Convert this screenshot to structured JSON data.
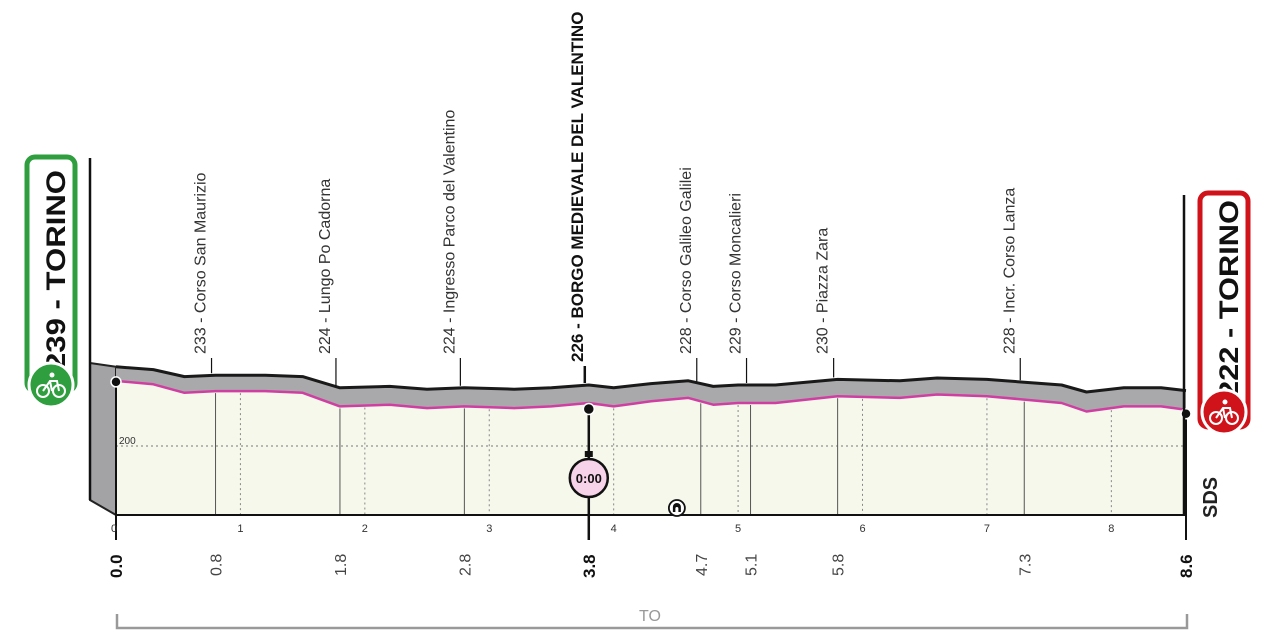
{
  "start": {
    "label": "239 - TORINO",
    "color": "#2e9e3e"
  },
  "finish": {
    "label": "222 - TORINO",
    "color": "#d0121b"
  },
  "brand": "SDS",
  "province": "TO",
  "intermediate": {
    "time": "0:00"
  },
  "colors": {
    "road": "#cf3fa2",
    "profile_fill": "#a9a9ab",
    "ground": "#f6f8ec"
  },
  "icons": {
    "start": "cyclist-icon",
    "finish": "cyclist-icon",
    "tunnel": "tunnel-icon",
    "timing": "stopwatch-icon"
  },
  "chart_data": {
    "type": "area",
    "total_km": 8.6,
    "elevation_reference": {
      "value": 200,
      "label": "200"
    },
    "km_ticks": [
      {
        "km": 0,
        "label": "0"
      },
      {
        "km": 1,
        "label": "1"
      },
      {
        "km": 2,
        "label": "2"
      },
      {
        "km": 3,
        "label": "3"
      },
      {
        "km": 4,
        "label": "4"
      },
      {
        "km": 5,
        "label": "5"
      },
      {
        "km": 6,
        "label": "6"
      },
      {
        "km": 7,
        "label": "7"
      },
      {
        "km": 8,
        "label": "8"
      }
    ],
    "distance_labels": [
      {
        "km": 0.0,
        "label": "0.0",
        "bold": true
      },
      {
        "km": 0.8,
        "label": "0.8",
        "bold": false
      },
      {
        "km": 1.8,
        "label": "1.8",
        "bold": false
      },
      {
        "km": 2.8,
        "label": "2.8",
        "bold": false
      },
      {
        "km": 3.8,
        "label": "3.8",
        "bold": true
      },
      {
        "km": 4.7,
        "label": "4.7",
        "bold": false
      },
      {
        "km": 5.1,
        "label": "5.1",
        "bold": false
      },
      {
        "km": 5.8,
        "label": "5.8",
        "bold": false
      },
      {
        "km": 7.3,
        "label": "7.3",
        "bold": false
      },
      {
        "km": 8.6,
        "label": "8.6",
        "bold": true
      }
    ],
    "waypoints": [
      {
        "km": 0.8,
        "label": "233 - Corso San Maurizio",
        "bold": false
      },
      {
        "km": 1.8,
        "label": "224 - Lungo Po Cadorna",
        "bold": false
      },
      {
        "km": 2.8,
        "label": "224 - Ingresso Parco del Valentino",
        "bold": false
      },
      {
        "km": 3.8,
        "label": "226 - BORGO MEDIEVALE DEL VALENTINO",
        "bold": true
      },
      {
        "km": 4.7,
        "label": "228 - Corso Galileo Galilei",
        "bold": false
      },
      {
        "km": 5.1,
        "label": "229 - Corso Moncalieri",
        "bold": false
      },
      {
        "km": 5.8,
        "label": "230 - Piazza Zara",
        "bold": false
      },
      {
        "km": 7.3,
        "label": "228 - Incr. Corso Lanza",
        "bold": false
      }
    ],
    "profile": [
      {
        "km": 0.0,
        "alt": 239
      },
      {
        "km": 0.3,
        "alt": 237
      },
      {
        "km": 0.55,
        "alt": 232
      },
      {
        "km": 0.8,
        "alt": 233
      },
      {
        "km": 1.2,
        "alt": 233
      },
      {
        "km": 1.5,
        "alt": 232
      },
      {
        "km": 1.8,
        "alt": 224
      },
      {
        "km": 2.2,
        "alt": 225
      },
      {
        "km": 2.5,
        "alt": 223
      },
      {
        "km": 2.8,
        "alt": 224
      },
      {
        "km": 3.2,
        "alt": 223
      },
      {
        "km": 3.5,
        "alt": 224
      },
      {
        "km": 3.8,
        "alt": 226
      },
      {
        "km": 4.0,
        "alt": 224
      },
      {
        "km": 4.3,
        "alt": 227
      },
      {
        "km": 4.6,
        "alt": 229
      },
      {
        "km": 4.8,
        "alt": 225
      },
      {
        "km": 5.0,
        "alt": 226
      },
      {
        "km": 5.3,
        "alt": 226
      },
      {
        "km": 5.8,
        "alt": 230
      },
      {
        "km": 6.3,
        "alt": 229
      },
      {
        "km": 6.6,
        "alt": 231
      },
      {
        "km": 7.0,
        "alt": 230
      },
      {
        "km": 7.3,
        "alt": 228
      },
      {
        "km": 7.6,
        "alt": 226
      },
      {
        "km": 7.8,
        "alt": 221
      },
      {
        "km": 8.1,
        "alt": 224
      },
      {
        "km": 8.4,
        "alt": 224
      },
      {
        "km": 8.6,
        "alt": 222
      }
    ],
    "tunnel_km": 4.5
  }
}
